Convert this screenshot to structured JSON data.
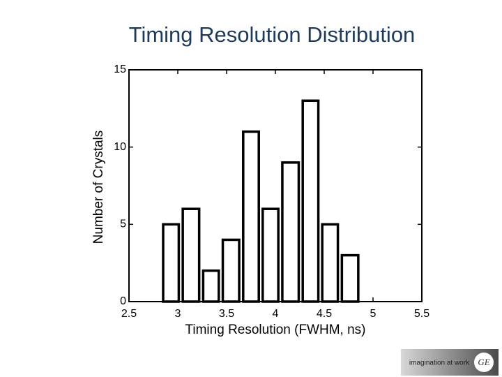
{
  "chart_data": {
    "type": "histogram",
    "title": "Timing Resolution Distribution",
    "xlabel": "Timing Resolution  (FWHM, ns)",
    "ylabel": "Number of Crystals",
    "bins": [
      2.83,
      3.03,
      3.24,
      3.44,
      3.65,
      3.85,
      4.05,
      4.26,
      4.46,
      4.66,
      4.87
    ],
    "counts": [
      5,
      6,
      2,
      4,
      11,
      6,
      9,
      13,
      5,
      3
    ],
    "color": "#ffffff",
    "edgecolor": "#000000",
    "xlim": [
      2.5,
      5.5
    ],
    "xticks": [
      2.5,
      3,
      3.5,
      4,
      4.5,
      5,
      5.5
    ],
    "ylim": [
      0,
      15
    ],
    "yticks": [
      0,
      5,
      10,
      15
    ],
    "grid": false
  },
  "footer": {
    "tagline": "imagination at work",
    "logo": "GE"
  }
}
